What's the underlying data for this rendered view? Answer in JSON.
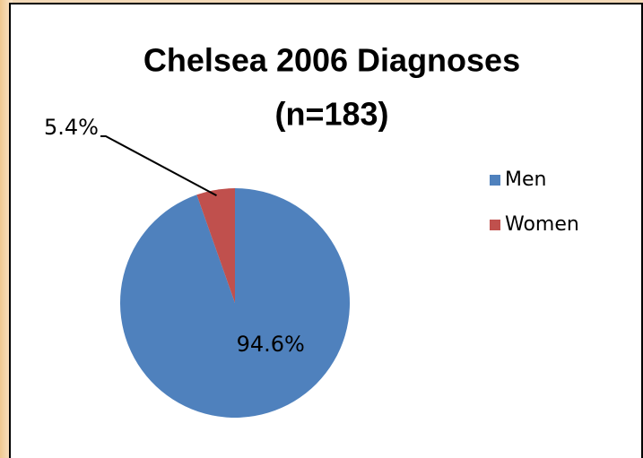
{
  "chart_data": {
    "type": "pie",
    "title": [
      "Chelsea 2006 Diagnoses",
      "(n=183)"
    ],
    "categories": [
      "Men",
      "Women"
    ],
    "values": [
      94.6,
      5.4
    ],
    "value_labels": [
      "94.6%",
      "5.4%"
    ],
    "colors": [
      "#4f81bd",
      "#c0504d"
    ],
    "legend": "right"
  }
}
